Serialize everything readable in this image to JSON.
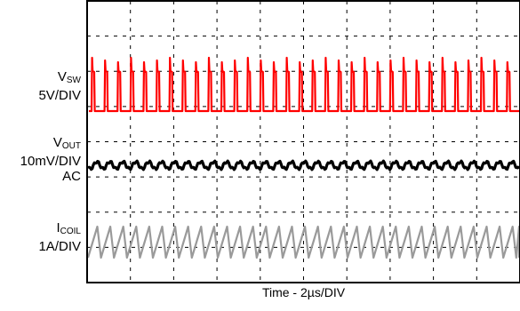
{
  "chart_data": {
    "type": "line",
    "title": "",
    "xlabel": "Time - 2µs/DIV",
    "grid": true,
    "divisions": {
      "x": 10,
      "y": 8
    },
    "channels": [
      {
        "name_main": "V",
        "name_sub": "SW",
        "scale": "5V/DIV",
        "coupling": "",
        "color": "#ff0000",
        "description": "switch-node square wave, period ~0.3 div, duty ~10%"
      },
      {
        "name_main": "V",
        "name_sub": "OUT",
        "scale": "10mV/DIV",
        "coupling": "AC",
        "color": "#000000",
        "description": "output ripple, ~0.3 div peak-to-peak"
      },
      {
        "name_main": "I",
        "name_sub": "COIL",
        "scale": "1A/DIV",
        "coupling": "",
        "color": "#9a9a9a",
        "description": "inductor current sawtooth, ~0.85 div peak-to-peak"
      }
    ]
  }
}
